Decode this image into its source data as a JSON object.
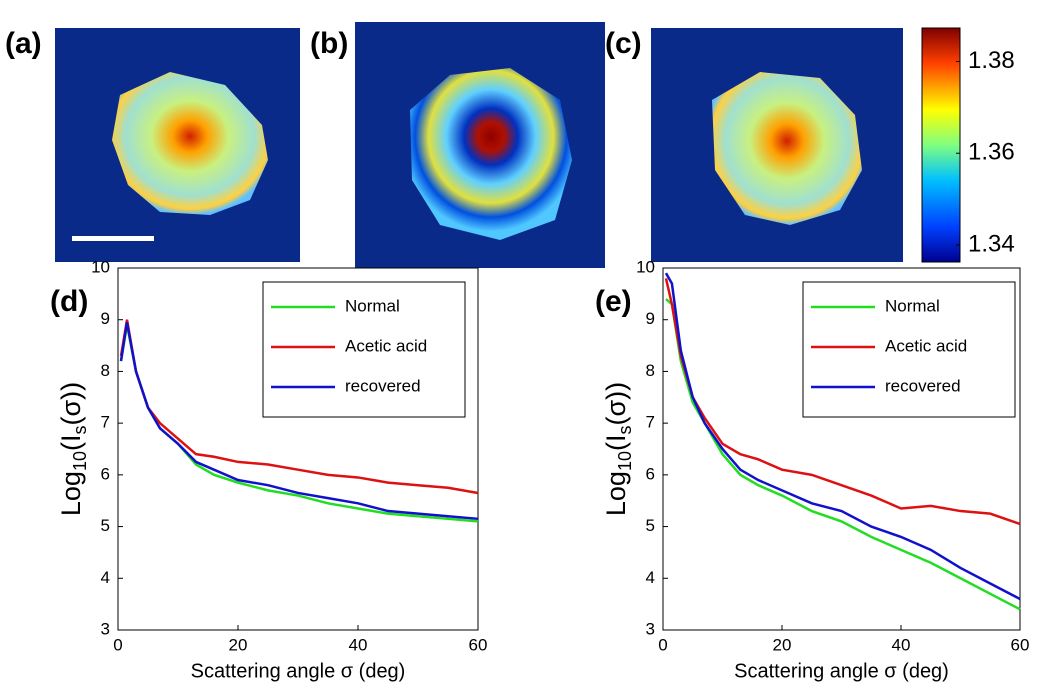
{
  "images": {
    "panels": [
      "(a)",
      "(b)",
      "(c)"
    ]
  },
  "colorbar": {
    "lim": [
      1.3363,
      1.3873
    ],
    "ticks": [
      1.34,
      1.36,
      1.38
    ]
  },
  "chart_data": [
    {
      "type": "line",
      "panel": "(d)",
      "xlabel": "Scattering angle σ (deg)",
      "ylabel_parts": [
        "Log",
        "10",
        "(I",
        "s",
        "(σ))"
      ],
      "xlim": [
        0,
        60
      ],
      "ylim": [
        3,
        10
      ],
      "xticks": [
        0,
        20,
        40,
        60
      ],
      "yticks": [
        3,
        4,
        5,
        6,
        7,
        8,
        9,
        10
      ],
      "x": [
        0.5,
        1.5,
        3,
        5,
        7,
        10,
        13,
        16,
        20,
        25,
        30,
        35,
        40,
        45,
        50,
        55,
        60
      ],
      "series": [
        {
          "name": "Normal",
          "color": "#22dd22",
          "values": [
            8.2,
            8.9,
            8.0,
            7.3,
            6.9,
            6.6,
            6.2,
            6.0,
            5.85,
            5.7,
            5.6,
            5.45,
            5.35,
            5.25,
            5.2,
            5.15,
            5.1
          ]
        },
        {
          "name": "Acetic acid",
          "color": "#dd1111",
          "values": [
            8.3,
            9.0,
            8.0,
            7.3,
            7.0,
            6.7,
            6.4,
            6.35,
            6.25,
            6.2,
            6.1,
            6.0,
            5.95,
            5.85,
            5.8,
            5.75,
            5.65
          ]
        },
        {
          "name": "recovered",
          "color": "#1111cc",
          "values": [
            8.2,
            8.95,
            8.0,
            7.3,
            6.9,
            6.6,
            6.25,
            6.1,
            5.9,
            5.8,
            5.65,
            5.55,
            5.45,
            5.3,
            5.25,
            5.2,
            5.15
          ]
        }
      ]
    },
    {
      "type": "line",
      "panel": "(e)",
      "xlabel": "Scattering angle σ (deg)",
      "ylabel_parts": [
        "Log",
        "10",
        "(I",
        "s",
        "(σ))"
      ],
      "xlim": [
        0,
        60
      ],
      "ylim": [
        3,
        10
      ],
      "xticks": [
        0,
        20,
        40,
        60
      ],
      "yticks": [
        3,
        4,
        5,
        6,
        7,
        8,
        9,
        10
      ],
      "x": [
        0.5,
        1.5,
        3,
        5,
        7,
        10,
        13,
        16,
        20,
        25,
        30,
        35,
        40,
        45,
        50,
        55,
        60
      ],
      "series": [
        {
          "name": "Normal",
          "color": "#22dd22",
          "values": [
            9.4,
            9.3,
            8.2,
            7.4,
            7.0,
            6.4,
            6.0,
            5.8,
            5.6,
            5.3,
            5.1,
            4.8,
            4.55,
            4.3,
            4.0,
            3.7,
            3.4
          ]
        },
        {
          "name": "Acetic acid",
          "color": "#dd1111",
          "values": [
            9.8,
            9.3,
            8.3,
            7.5,
            7.1,
            6.6,
            6.4,
            6.3,
            6.1,
            6.0,
            5.8,
            5.6,
            5.35,
            5.4,
            5.3,
            5.25,
            5.05
          ]
        },
        {
          "name": "recovered",
          "color": "#1111cc",
          "values": [
            9.9,
            9.7,
            8.4,
            7.5,
            7.0,
            6.5,
            6.1,
            5.9,
            5.7,
            5.45,
            5.3,
            5.0,
            4.8,
            4.55,
            4.2,
            3.9,
            3.6
          ]
        }
      ]
    }
  ]
}
